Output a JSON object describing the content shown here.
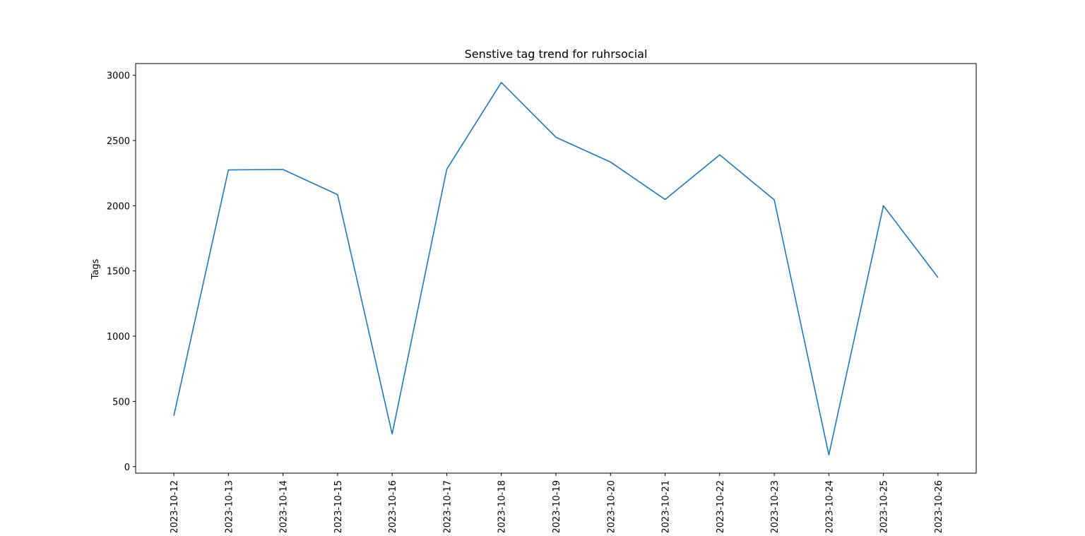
{
  "chart_data": {
    "type": "line",
    "title": "Senstive tag trend for ruhrsocial",
    "xlabel": "",
    "ylabel": "Tags",
    "x": [
      "2023-10-12",
      "2023-10-13",
      "2023-10-14",
      "2023-10-15",
      "2023-10-16",
      "2023-10-17",
      "2023-10-18",
      "2023-10-19",
      "2023-10-20",
      "2023-10-21",
      "2023-10-22",
      "2023-10-23",
      "2023-10-24",
      "2023-10-25",
      "2023-10-26"
    ],
    "series": [
      {
        "values": [
          390,
          2275,
          2278,
          2085,
          250,
          2280,
          2945,
          2525,
          2335,
          2048,
          2390,
          2045,
          90,
          2000,
          1450
        ]
      }
    ],
    "yticks": [
      0,
      500,
      1000,
      1500,
      2000,
      2500,
      3000
    ],
    "ylim": [
      -50,
      3090
    ],
    "xlim": [
      -0.7,
      14.7
    ],
    "grid": false,
    "legend": "none",
    "line_color": "#1f77b4"
  }
}
